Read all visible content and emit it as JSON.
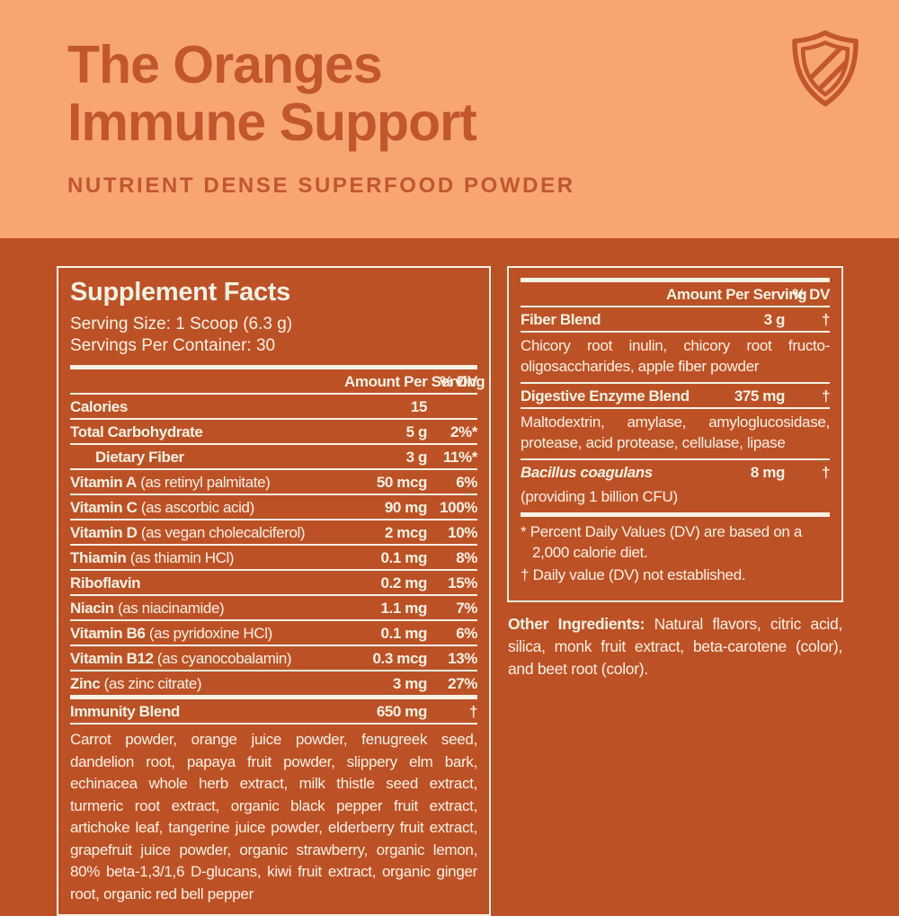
{
  "colors": {
    "peach": "#F7A672",
    "rust": "#BD5126",
    "accent": "#C2572C",
    "cream": "#FAF1E5"
  },
  "brand": {
    "title_line1": "The Oranges",
    "title_line2": "Immune Support",
    "subtitle": "NUTRIENT DENSE SUPERFOOD POWDER",
    "shield_icon": "shield-icon"
  },
  "facts": {
    "title": "Supplement Facts",
    "serving_size": "Serving Size: 1 Scoop (6.3 g)",
    "servings_per_container": "Servings Per Container: 30",
    "col_amount": "Amount Per Serving",
    "col_dv": "% DV",
    "rows": [
      {
        "name": "Calories",
        "sub": "",
        "amount": "15",
        "dv": "",
        "indent": false
      },
      {
        "name": "Total Carbohydrate",
        "sub": "",
        "amount": "5 g",
        "dv": "2%*",
        "indent": false
      },
      {
        "name": "Dietary Fiber",
        "sub": "",
        "amount": "3 g",
        "dv": "11%*",
        "indent": true
      },
      {
        "name": "Vitamin A",
        "sub": "(as retinyl palmitate)",
        "amount": "50 mcg",
        "dv": "6%",
        "indent": false
      },
      {
        "name": "Vitamin C",
        "sub": "(as ascorbic acid)",
        "amount": "90 mg",
        "dv": "100%",
        "indent": false
      },
      {
        "name": "Vitamin D",
        "sub": "(as vegan cholecalciferol)",
        "amount": "2 mcg",
        "dv": "10%",
        "indent": false
      },
      {
        "name": "Thiamin",
        "sub": "(as thiamin HCl)",
        "amount": "0.1 mg",
        "dv": "8%",
        "indent": false
      },
      {
        "name": "Riboflavin",
        "sub": "",
        "amount": "0.2 mg",
        "dv": "15%",
        "indent": false
      },
      {
        "name": "Niacin",
        "sub": "(as niacinamide)",
        "amount": "1.1 mg",
        "dv": "7%",
        "indent": false
      },
      {
        "name": "Vitamin B6",
        "sub": "(as pyridoxine HCl)",
        "amount": "0.1 mg",
        "dv": "6%",
        "indent": false
      },
      {
        "name": "Vitamin B12",
        "sub": "(as cyanocobalamin)",
        "amount": "0.3 mcg",
        "dv": "13%",
        "indent": false
      },
      {
        "name": "Zinc",
        "sub": "(as zinc citrate)",
        "amount": "3 mg",
        "dv": "27%",
        "indent": false
      }
    ],
    "immunity_blend": {
      "name": "Immunity Blend",
      "amount": "650 mg",
      "dv": "†",
      "description": "Carrot powder, orange juice powder, fenugreek seed, dandelion root, papaya fruit powder, slippery elm bark, echinacea whole herb extract, milk thistle seed extract, turmeric root extract, organic black pepper fruit extract, artichoke leaf, tangerine juice powder, elderberry fruit extract, grapefruit juice powder, organic strawberry, organic lemon, 80% beta-1,3/1,6 D-glucans, kiwi fruit extract, organic ginger root, organic red bell pepper"
    }
  },
  "blends": {
    "col_amount": "Amount Per Serving",
    "col_dv": "% DV",
    "sections": [
      {
        "name": "Fiber Blend",
        "italic": false,
        "amount": "3 g",
        "dv": "†",
        "description": "Chicory root inulin, chicory root fructo-oligosaccharides, apple fiber powder",
        "desc_style": "justify",
        "desc_line": true
      },
      {
        "name": "Digestive Enzyme Blend",
        "italic": false,
        "amount": "375 mg",
        "dv": "†",
        "description": "Maltodextrin, amylase, amyloglucosidase, protease, acid protease, cellulase, lipase",
        "desc_style": "justify",
        "desc_line": true
      },
      {
        "name": "Bacillus coagulans",
        "italic": true,
        "amount": "8 mg",
        "dv": "†",
        "description": "(providing 1 billion CFU)",
        "desc_style": "plain",
        "desc_line": false
      }
    ],
    "footnotes": [
      "* Percent Daily Values (DV) are based on a 2,000 calorie diet.",
      "† Daily value (DV) not established."
    ]
  },
  "other_ingredients": {
    "label": "Other Ingredients:",
    "text": "Natural flavors, citric acid, silica, monk fruit extract, beta-carotene (color), and beet root (color)."
  }
}
